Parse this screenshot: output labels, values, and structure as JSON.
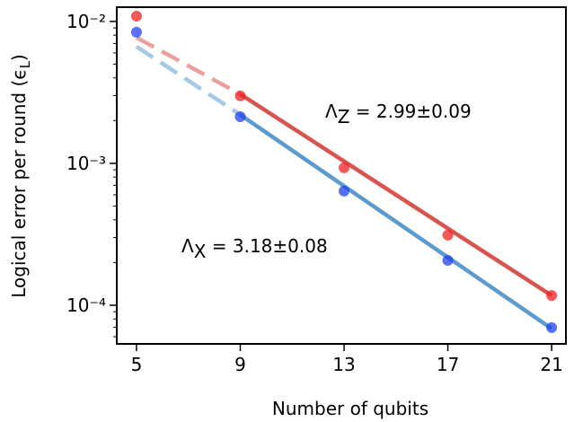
{
  "chart_data": {
    "type": "scatter",
    "xlabel": "Number of qubits",
    "ylabel": [
      "Logical error per round (ϵ",
      "L",
      ")"
    ],
    "log_y": true,
    "xlim": [
      4.24,
      21.55
    ],
    "ylim": [
      0.0126,
      5.34e-05
    ],
    "xticks": [
      5,
      9,
      13,
      17,
      21
    ],
    "yticks": [
      {
        "value": 0.01,
        "label": "10⁻²"
      },
      {
        "value": 0.001,
        "label": "10⁻³"
      },
      {
        "value": 0.0001,
        "label": "10⁻⁴"
      }
    ],
    "minor_yticks": [
      6e-05,
      7e-05,
      8e-05,
      9e-05,
      0.0002,
      0.0003,
      0.0004,
      0.0005,
      0.0006,
      0.0007,
      0.0008,
      0.0009,
      0.002,
      0.003,
      0.004,
      0.005,
      0.006,
      0.007,
      0.008,
      0.009
    ],
    "x": [
      5,
      9,
      13,
      17,
      21
    ],
    "series": [
      {
        "color": "#d62728",
        "marker_color": "#f02020",
        "values": [
          0.0109,
          0.00299,
          0.00093,
          0.000312,
          0.000117
        ],
        "fit_x": [
          5,
          9,
          21
        ],
        "fit_values": [
          0.0077,
          0.00307,
          0.000117
        ],
        "fit_color": "#d9534f"
      },
      {
        "color": "#1f77b4",
        "marker_color": "#2040f0",
        "values": [
          0.0084,
          0.00213,
          0.000637,
          0.000207,
          6.95e-05
        ],
        "fit_x": [
          5,
          9,
          21
        ],
        "fit_values": [
          0.00665,
          0.0022,
          6.84e-05
        ],
        "fit_color": "#5b9bd0"
      }
    ],
    "annotations": [
      {
        "symbol": "Λ",
        "subscript": "Z",
        "text": " = 2.99±0.09",
        "color": "#d62728"
      },
      {
        "symbol": "Λ",
        "subscript": "X",
        "text": " = 3.18±0.08",
        "color": "#1f77b4"
      }
    ]
  }
}
